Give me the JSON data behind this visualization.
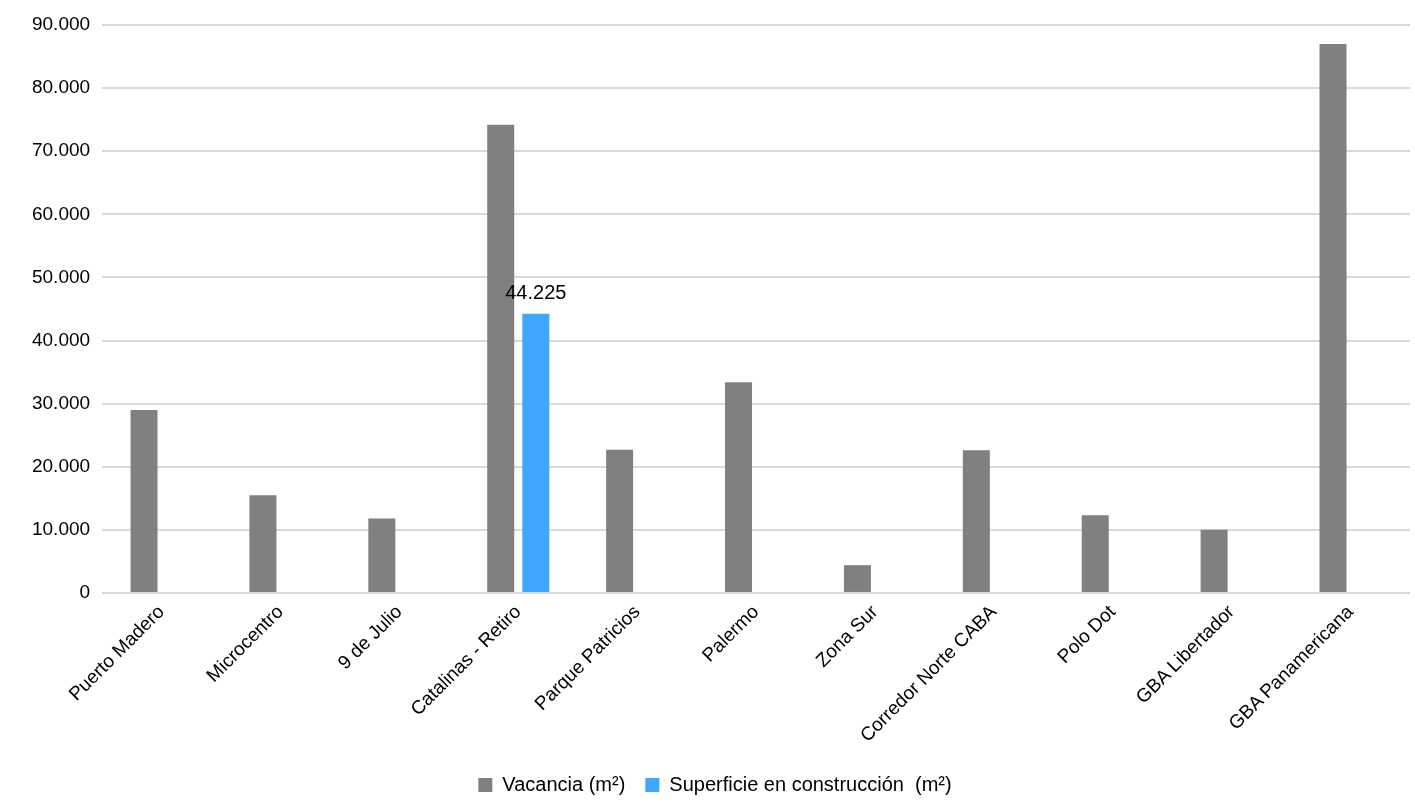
{
  "chart_data": {
    "type": "bar",
    "categories": [
      "Puerto Madero",
      "Microcentro",
      "9 de Julio",
      "Catalinas - Retiro",
      "Parque Patricios",
      "Palermo",
      "Zona Sur",
      "Corredor Norte CABA",
      "Polo Dot",
      "GBA Libertador",
      "GBA Panamericana"
    ],
    "series": [
      {
        "name": "Vacancia (m²)",
        "color": "#808080",
        "values": [
          29000,
          15500,
          11800,
          74200,
          22700,
          33400,
          4400,
          22600,
          12300,
          10000,
          87000
        ]
      },
      {
        "name": "Superficie en construcción  (m²)",
        "color": "#3ea8ff",
        "values": [
          null,
          null,
          null,
          44225,
          null,
          null,
          null,
          null,
          null,
          null,
          null
        ],
        "value_labels": [
          null,
          null,
          null,
          "44.225",
          null,
          null,
          null,
          null,
          null,
          null,
          null
        ]
      }
    ],
    "ylim": [
      0,
      90000
    ],
    "yticks": [
      {
        "value": 0,
        "label": "0"
      },
      {
        "value": 10000,
        "label": "10.000"
      },
      {
        "value": 20000,
        "label": "20.000"
      },
      {
        "value": 30000,
        "label": "30.000"
      },
      {
        "value": 40000,
        "label": "40.000"
      },
      {
        "value": 50000,
        "label": "50.000"
      },
      {
        "value": 60000,
        "label": "60.000"
      },
      {
        "value": 70000,
        "label": "70.000"
      },
      {
        "value": 80000,
        "label": "80.000"
      },
      {
        "value": 90000,
        "label": "90.000"
      }
    ],
    "grid": "y",
    "legend": "bottom"
  }
}
